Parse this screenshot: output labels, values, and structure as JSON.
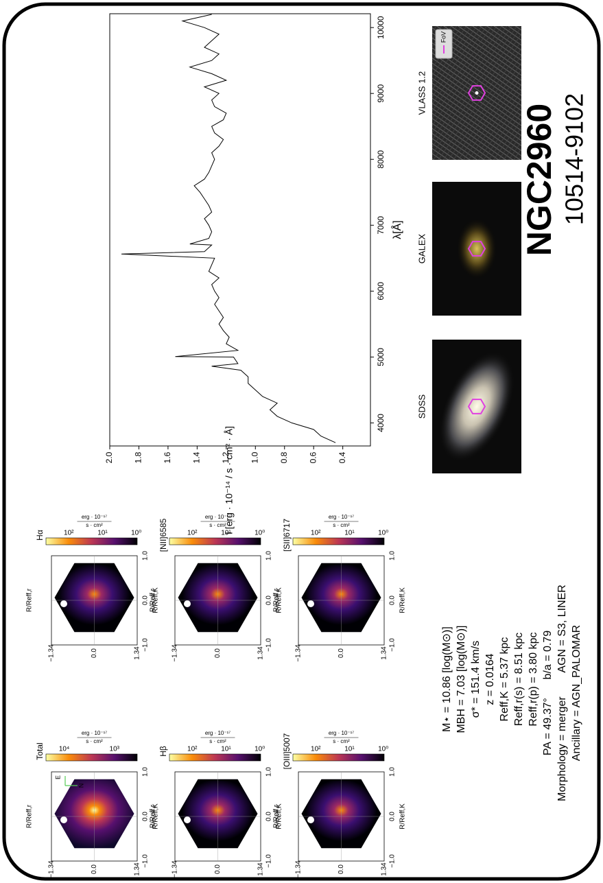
{
  "header": {
    "title": "NGC2960",
    "subtitle": "10514-9102"
  },
  "chart_data": {
    "type": "line",
    "x": [
      3700,
      3800,
      3900,
      4000,
      4100,
      4200,
      4300,
      4400,
      4500,
      4600,
      4700,
      4800,
      4861,
      4900,
      5000,
      5007,
      5100,
      5200,
      5300,
      5400,
      5500,
      5600,
      5700,
      5800,
      5900,
      6000,
      6100,
      6200,
      6300,
      6400,
      6500,
      6563,
      6600,
      6700,
      6716,
      6800,
      6900,
      7000,
      7100,
      7200,
      7300,
      7400,
      7500,
      7600,
      7700,
      7800,
      7900,
      8000,
      8100,
      8200,
      8300,
      8400,
      8500,
      8600,
      8700,
      8800,
      8900,
      9000,
      9100,
      9200,
      9300,
      9400,
      9500,
      9600,
      9700,
      9800,
      9900,
      10000,
      10100,
      10200
    ],
    "values": [
      0.45,
      0.55,
      0.6,
      0.75,
      0.85,
      0.9,
      0.85,
      0.95,
      1.0,
      1.05,
      1.05,
      1.1,
      1.3,
      1.12,
      1.15,
      1.55,
      1.12,
      1.2,
      1.18,
      1.22,
      1.25,
      1.22,
      1.25,
      1.28,
      1.25,
      1.28,
      1.3,
      1.25,
      1.32,
      1.3,
      1.28,
      1.92,
      1.35,
      1.3,
      1.45,
      1.32,
      1.3,
      1.32,
      1.35,
      1.3,
      1.32,
      1.35,
      1.38,
      1.42,
      1.35,
      1.32,
      1.3,
      1.28,
      1.3,
      1.25,
      1.22,
      1.28,
      1.3,
      1.22,
      1.2,
      1.28,
      1.3,
      1.25,
      1.35,
      1.2,
      1.3,
      1.45,
      1.3,
      1.25,
      1.35,
      1.3,
      1.25,
      1.35,
      1.5,
      1.3
    ],
    "color": "#000000",
    "x_label": "λ[Å]",
    "y_label": "I [erg · 10⁻¹⁴ / s · cm² · Å]",
    "xlim": [
      3650,
      10210
    ],
    "xticks": [
      4000,
      5000,
      6000,
      7000,
      8000,
      9000,
      10000
    ],
    "ylim": [
      0.21,
      2.0
    ],
    "yticks": [
      {
        "value": 0.4,
        "label": "0.4"
      },
      {
        "value": 0.6,
        "label": "0.6"
      },
      {
        "value": 0.8,
        "label": "0.8"
      },
      {
        "value": 1.0,
        "label": "1.0"
      },
      {
        "value": 1.2,
        "label": "1.2"
      },
      {
        "value": 1.4,
        "label": "1.4"
      },
      {
        "value": 1.6,
        "label": "1.6"
      },
      {
        "value": 1.8,
        "label": "1.8"
      },
      {
        "value": 2.0,
        "label": "2.0"
      }
    ]
  },
  "maps": {
    "x_label": "R/Reff,r",
    "y_label": "R/Reff,K",
    "x_ticks": [
      "−1.34",
      "0.0",
      "1.34"
    ],
    "y_ticks": [
      "1.0",
      "0.0",
      "−1.0"
    ],
    "cbar_unit_top": "erg · 10⁻¹⁷",
    "cbar_unit_bottom": "s · cm²",
    "compass": [
      "E",
      "N"
    ],
    "panels": [
      {
        "title": "Hα",
        "cbar_ticks": [
          "10²",
          "10¹",
          "10⁰"
        ]
      },
      {
        "title": "[NII]6585",
        "cbar_ticks": [
          "10²",
          "10¹",
          "10⁰"
        ]
      },
      {
        "title": "[SII]6717",
        "cbar_ticks": [
          "10²",
          "10¹",
          "10⁰"
        ]
      },
      {
        "title": "Total",
        "cbar_ticks": [
          "10⁴",
          "10³"
        ]
      },
      {
        "title": "Hβ",
        "cbar_ticks": [
          "10²",
          "10¹",
          "10⁰"
        ]
      },
      {
        "title": "[OIII]5007",
        "cbar_ticks": [
          "10²",
          "10¹",
          "10⁰"
        ]
      }
    ]
  },
  "images": [
    {
      "label": "SDSS"
    },
    {
      "label": "GALEX"
    },
    {
      "label": "VLASS 1.2",
      "legend": "FoV"
    }
  ],
  "properties": [
    "M⋆ = 10.86 [log(M⊙)]",
    "MBH = 7.03 [log(M⊙)]",
    "σ* = 151.4 km/s",
    "z = 0.0164",
    "Reff,K = 5.37 kpc",
    "Reff,r(s) = 8.51 kpc",
    "Reff,r(p) = 3.80 kpc",
    "PA = 49.37°      b/a = 0.79",
    "Morphology = merger        AGN = S3, LINER",
    "Ancillary = AGN_PALOMAR"
  ]
}
